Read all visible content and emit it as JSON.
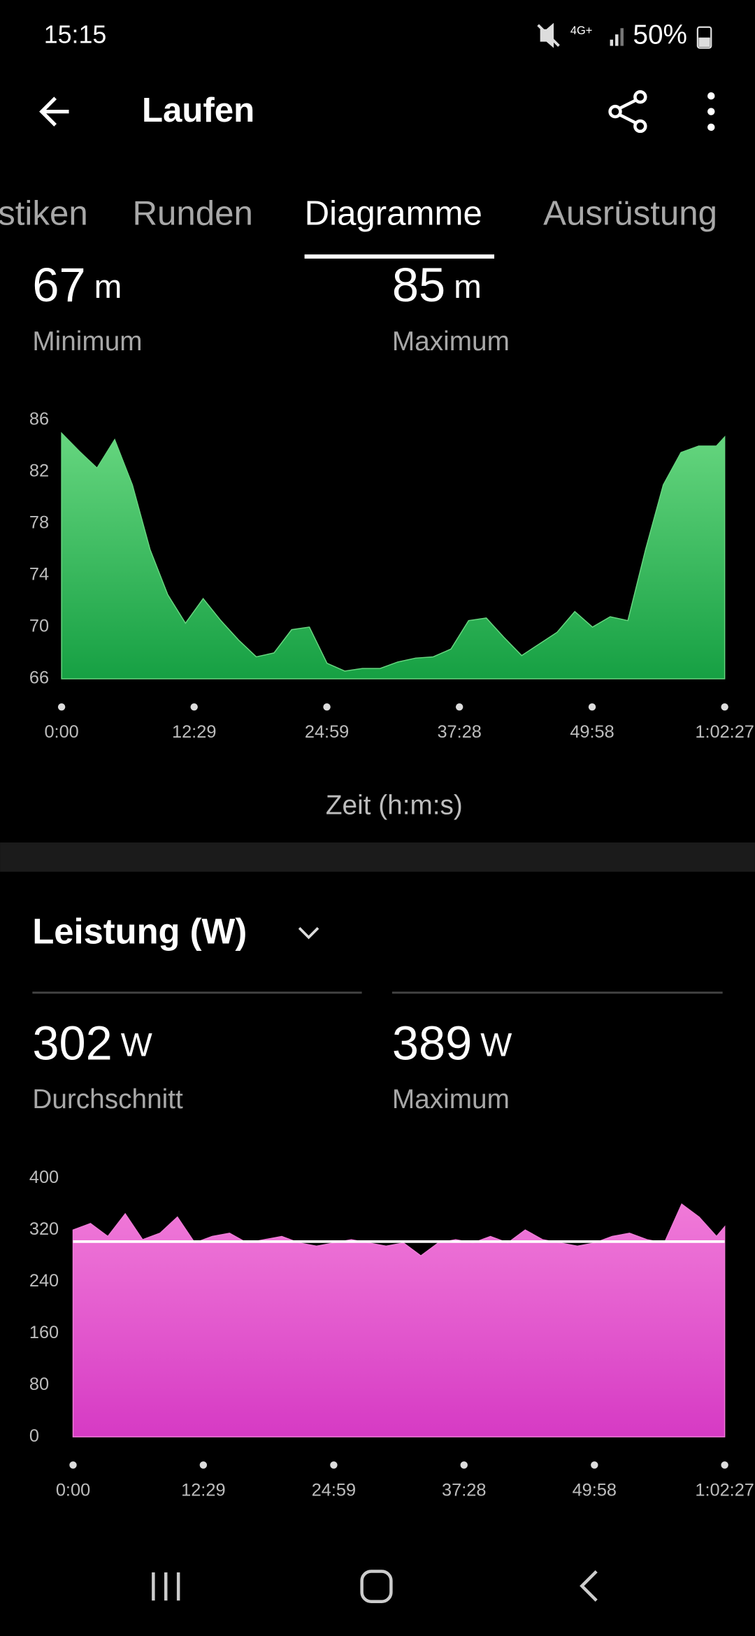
{
  "status_bar": {
    "time": "15:15",
    "battery": "50%"
  },
  "header": {
    "title": "Laufen"
  },
  "tabs": {
    "items": [
      "stiken",
      "Runden",
      "Diagramme",
      "Ausrüstung"
    ],
    "selected": 2
  },
  "elevation": {
    "stats": [
      {
        "value": 67,
        "unit": "m",
        "label": "Minimum"
      },
      {
        "value": 85,
        "unit": "m",
        "label": "Maximum"
      }
    ],
    "chart": {
      "type": "area",
      "color_top": "#66d67f",
      "color_bottom": "#16a043",
      "x": [
        0,
        100,
        200,
        300,
        400,
        500,
        600,
        700,
        800,
        900,
        1000,
        1100,
        1200,
        1300,
        1400,
        1500,
        1600,
        1700,
        1800,
        1900,
        2000,
        2100,
        2200,
        2300,
        2400,
        2500,
        2600,
        2700,
        2800,
        2900,
        3000,
        3100,
        3200,
        3300,
        3400,
        3500,
        3600,
        3700,
        3747
      ],
      "values": [
        85,
        83.6,
        82.3,
        84.5,
        81,
        76,
        72.5,
        70.3,
        72.2,
        70.5,
        69,
        67.7,
        68,
        69.8,
        70,
        67.2,
        66.6,
        66.8,
        66.8,
        67.3,
        67.6,
        67.7,
        68.3,
        70.5,
        70.7,
        69.2,
        67.8,
        68.7,
        69.6,
        71.2,
        70,
        70.8,
        70.5,
        76,
        81,
        83.5,
        84,
        84,
        84.7
      ],
      "xlim": [
        0,
        3747
      ],
      "xticks": [
        {
          "value": 0,
          "label": "0:00"
        },
        {
          "value": 749,
          "label": "12:29"
        },
        {
          "value": 1499,
          "label": "24:59"
        },
        {
          "value": 2248,
          "label": "37:28"
        },
        {
          "value": 2998,
          "label": "49:58"
        },
        {
          "value": 3747,
          "label": "1:02:27"
        }
      ],
      "ylim": [
        66,
        86
      ],
      "yticks": [
        66,
        70,
        74,
        78,
        82,
        86
      ]
    },
    "x_label": "Zeit (h:m:s)"
  },
  "power": {
    "title": "Leistung (W)",
    "stats": [
      {
        "value": 302,
        "unit": "W",
        "label": "Durchschnitt"
      },
      {
        "value": 389,
        "unit": "W",
        "label": "Maximum"
      }
    ],
    "chart": {
      "type": "area",
      "color_top": "#f07ad8",
      "color_bottom": "#d63ac4",
      "x": [
        0,
        100,
        200,
        300,
        400,
        500,
        600,
        700,
        800,
        900,
        1000,
        1100,
        1200,
        1300,
        1400,
        1500,
        1600,
        1700,
        1800,
        1900,
        2000,
        2100,
        2200,
        2300,
        2400,
        2500,
        2600,
        2700,
        2800,
        2900,
        3000,
        3100,
        3200,
        3300,
        3400,
        3500,
        3600,
        3700,
        3747
      ],
      "values": [
        320,
        330,
        310,
        345,
        305,
        315,
        340,
        300,
        310,
        315,
        300,
        305,
        310,
        300,
        295,
        300,
        305,
        300,
        295,
        300,
        280,
        300,
        305,
        300,
        310,
        300,
        320,
        305,
        300,
        295,
        300,
        310,
        315,
        305,
        300,
        360,
        340,
        310,
        325
      ],
      "xlim": [
        0,
        3747
      ],
      "xticks": [
        {
          "value": 0,
          "label": "0:00"
        },
        {
          "value": 749,
          "label": "12:29"
        },
        {
          "value": 1499,
          "label": "24:59"
        },
        {
          "value": 2248,
          "label": "37:28"
        },
        {
          "value": 2998,
          "label": "49:58"
        },
        {
          "value": 3747,
          "label": "1:02:27"
        }
      ],
      "ylim": [
        0,
        400
      ],
      "yticks": [
        0,
        80,
        160,
        240,
        320,
        400
      ]
    }
  }
}
